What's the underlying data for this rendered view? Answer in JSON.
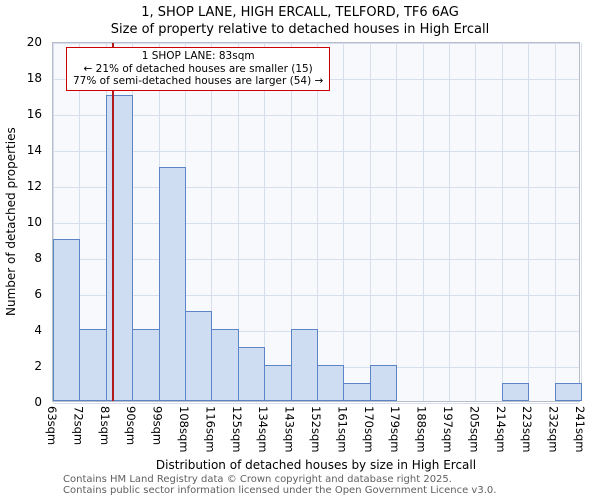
{
  "title": "1, SHOP LANE, HIGH ERCALL, TELFORD, TF6 6AG",
  "subtitle": "Size of property relative to detached houses in High Ercall",
  "y_axis_label": "Number of detached properties",
  "x_axis_label": "Distribution of detached houses by size in High Ercall",
  "annotation": {
    "line1": "1 SHOP LANE: 83sqm",
    "line2": "← 21% of detached houses are smaller (15)",
    "line3": "77% of semi-detached houses are larger (54) →"
  },
  "footer": {
    "line1": "Contains HM Land Registry data © Crown copyright and database right 2025.",
    "line2": "Contains public sector information licensed under the Open Government Licence v3.0."
  },
  "colors": {
    "bar_fill": "#cfddf2",
    "bar_border": "#5c85c7",
    "marker_line": "#b01c1c",
    "annotation_border": "#cc0000",
    "grid": "#d7deed"
  },
  "chart_data": {
    "type": "bar",
    "title": "1, SHOP LANE, HIGH ERCALL, TELFORD, TF6 6AG",
    "subtitle": "Size of property relative to detached houses in High Ercall",
    "xlabel": "Distribution of detached houses by size in High Ercall",
    "ylabel": "Number of detached properties",
    "categories": [
      "63sqm",
      "72sqm",
      "81sqm",
      "90sqm",
      "99sqm",
      "108sqm",
      "116sqm",
      "125sqm",
      "134sqm",
      "143sqm",
      "152sqm",
      "161sqm",
      "170sqm",
      "179sqm",
      "188sqm",
      "197sqm",
      "205sqm",
      "214sqm",
      "223sqm",
      "232sqm"
    ],
    "values": [
      9,
      4,
      17,
      4,
      13,
      5,
      4,
      3,
      2,
      4,
      2,
      1,
      2,
      0,
      0,
      0,
      0,
      1,
      0,
      1
    ],
    "x_tick_labels": [
      "63sqm",
      "72sqm",
      "81sqm",
      "90sqm",
      "99sqm",
      "108sqm",
      "116sqm",
      "125sqm",
      "134sqm",
      "143sqm",
      "152sqm",
      "161sqm",
      "170sqm",
      "179sqm",
      "188sqm",
      "197sqm",
      "205sqm",
      "214sqm",
      "223sqm",
      "232sqm",
      "241sqm"
    ],
    "yticks": [
      0,
      2,
      4,
      6,
      8,
      10,
      12,
      14,
      16,
      18,
      20
    ],
    "ylim": [
      0,
      20
    ],
    "xlim": [
      63,
      241
    ],
    "grid": true,
    "legend": "none",
    "marker": {
      "label": "1 SHOP LANE",
      "value_sqm": 83
    }
  }
}
